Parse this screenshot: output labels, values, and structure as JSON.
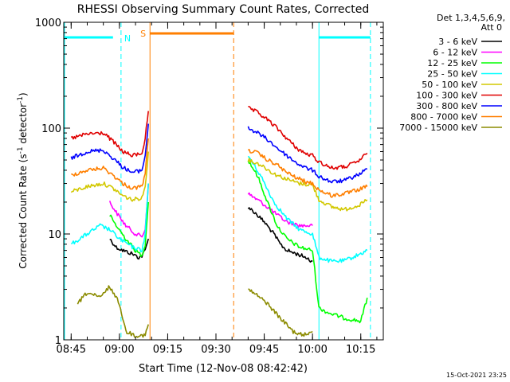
{
  "chart_data": {
    "type": "line",
    "title": "RHESSI Observing Summary Count Rates, Corrected",
    "xlabel": "Start Time (12-Nov-08 08:42:42)",
    "ylabel": "Corrected Count Rate (s",
    "ylabel_sup1": "-1",
    "ylabel_mid": " detector",
    "ylabel_sup2": "-1",
    "ylabel_end": ")",
    "yscale": "log",
    "ylim": [
      1,
      1000
    ],
    "xlim": [
      "08:42:42",
      "10:22:00"
    ],
    "ytick_labels": [
      "1",
      "10",
      "100",
      "1000"
    ],
    "xtick_labels": [
      "08:45",
      "09:00",
      "09:15",
      "09:30",
      "09:45",
      "10:00",
      "10:15"
    ],
    "legend": {
      "position": "right",
      "header": [
        "Det 1,3,4,5,6,9,",
        "Att 0"
      ],
      "entries": [
        {
          "label": "3 - 6 keV",
          "color": "#000000"
        },
        {
          "label": "6 - 12 keV",
          "color": "#ff00ff"
        },
        {
          "label": "12 - 25 keV",
          "color": "#00ff00"
        },
        {
          "label": "25 - 50 keV",
          "color": "#00ffff"
        },
        {
          "label": "50 - 100 keV",
          "color": "#d2c800"
        },
        {
          "label": "100 - 300 keV",
          "color": "#e00000"
        },
        {
          "label": "300 - 800 keV",
          "color": "#0000ff"
        },
        {
          "label": "800 - 7000 keV",
          "color": "#ff7f00"
        },
        {
          "label": "7000 - 15000 keV",
          "color": "#8b8b00"
        }
      ]
    },
    "annotations": [
      {
        "label": "N",
        "color": "#00ffff"
      },
      {
        "label": "S",
        "color": "#ff7f00"
      }
    ],
    "series": [
      {
        "id": "s_3_6",
        "color": "#000000",
        "x": [
          "08:57",
          "08:59",
          "09:01",
          "09:04",
          "09:06",
          "09:07",
          "09:08",
          "09:09",
          "09:40",
          "09:42",
          "09:45",
          "09:48",
          "09:50",
          "09:52",
          "09:55",
          "09:58",
          "10:00"
        ],
        "y": [
          9,
          7.5,
          7,
          6.5,
          6,
          6.2,
          7,
          9,
          18,
          16,
          13,
          10,
          8,
          7,
          6.5,
          6,
          5.5
        ]
      },
      {
        "id": "s_6_12",
        "color": "#ff00ff",
        "x": [
          "08:57",
          "08:59",
          "09:02",
          "09:05",
          "09:07",
          "09:08",
          "09:09",
          "09:40",
          "09:44",
          "09:48",
          "09:52",
          "09:56",
          "10:00"
        ],
        "y": [
          20,
          16,
          12,
          10,
          9.5,
          11,
          30,
          24,
          20,
          16,
          13,
          12,
          12
        ]
      },
      {
        "id": "s_12_25",
        "color": "#00ff00",
        "x": [
          "08:57",
          "08:59",
          "09:02",
          "09:05",
          "09:07",
          "09:08",
          "09:09",
          "09:40",
          "09:43",
          "09:46",
          "09:49",
          "09:52",
          "09:56",
          "10:00",
          "10:02",
          "10:05",
          "10:10",
          "10:15",
          "10:17"
        ],
        "y": [
          15,
          12,
          9,
          7,
          6.2,
          8,
          20,
          50,
          35,
          20,
          12,
          9,
          7.5,
          7,
          2,
          1.8,
          1.6,
          1.5,
          2.5
        ]
      },
      {
        "id": "s_25_50",
        "color": "#00ffff",
        "x": [
          "08:45",
          "08:50",
          "08:54",
          "08:57",
          "09:00",
          "09:04",
          "09:07",
          "09:08",
          "09:09",
          "09:40",
          "09:44",
          "09:48",
          "09:52",
          "09:56",
          "10:00",
          "10:02",
          "10:06",
          "10:10",
          "10:15",
          "10:17"
        ],
        "y": [
          8,
          10,
          12,
          11,
          9,
          7.5,
          7,
          10,
          30,
          55,
          35,
          20,
          14,
          11,
          10,
          6,
          5.5,
          5.6,
          6.5,
          7
        ]
      },
      {
        "id": "s_50_100",
        "color": "#d2c800",
        "x": [
          "08:45",
          "08:50",
          "08:55",
          "08:58",
          "09:01",
          "09:04",
          "09:07",
          "09:08",
          "09:09",
          "09:40",
          "09:44",
          "09:48",
          "09:52",
          "09:56",
          "10:00",
          "10:02",
          "10:06",
          "10:10",
          "10:15",
          "10:17"
        ],
        "y": [
          25,
          28,
          30,
          27,
          23,
          21,
          22,
          28,
          60,
          50,
          45,
          37,
          33,
          30,
          29,
          21,
          18,
          17,
          19,
          21
        ]
      },
      {
        "id": "s_100_300",
        "color": "#e00000",
        "x": [
          "08:45",
          "08:50",
          "08:55",
          "08:58",
          "09:01",
          "09:04",
          "09:07",
          "09:08",
          "09:09",
          "09:40",
          "09:43",
          "09:46",
          "09:49",
          "09:52",
          "09:55",
          "09:58",
          "10:00",
          "10:02",
          "10:06",
          "10:10",
          "10:14",
          "10:17"
        ],
        "y": [
          80,
          88,
          90,
          75,
          60,
          55,
          58,
          80,
          145,
          155,
          140,
          120,
          100,
          80,
          65,
          57,
          55,
          48,
          42,
          43,
          48,
          58
        ]
      },
      {
        "id": "s_300_800",
        "color": "#0000ff",
        "x": [
          "08:45",
          "08:50",
          "08:55",
          "08:58",
          "09:01",
          "09:04",
          "09:07",
          "09:08",
          "09:09",
          "09:40",
          "09:43",
          "09:46",
          "09:49",
          "09:52",
          "09:55",
          "09:58",
          "10:00",
          "10:02",
          "10:06",
          "10:10",
          "10:14",
          "10:17"
        ],
        "y": [
          52,
          60,
          62,
          52,
          43,
          38,
          40,
          55,
          110,
          100,
          90,
          78,
          65,
          55,
          47,
          42,
          40,
          35,
          31,
          32,
          36,
          41
        ]
      },
      {
        "id": "s_800_7000",
        "color": "#ff7f00",
        "x": [
          "08:45",
          "08:50",
          "08:55",
          "08:58",
          "09:01",
          "09:04",
          "09:07",
          "09:08",
          "09:09",
          "09:40",
          "09:43",
          "09:46",
          "09:49",
          "09:52",
          "09:55",
          "09:58",
          "10:00",
          "10:02",
          "10:06",
          "10:10",
          "10:14",
          "10:17"
        ],
        "y": [
          36,
          40,
          42,
          36,
          30,
          27,
          28,
          38,
          80,
          62,
          58,
          50,
          45,
          38,
          34,
          31,
          30,
          26,
          23,
          24,
          26,
          28
        ]
      },
      {
        "id": "s_7000_15000",
        "color": "#8b8b00",
        "x": [
          "08:47",
          "08:50",
          "08:54",
          "08:57",
          "09:00",
          "09:02",
          "09:05",
          "09:08",
          "09:09",
          "09:40",
          "09:43",
          "09:46",
          "09:50",
          "09:54",
          "09:57",
          "10:00"
        ],
        "y": [
          2.2,
          2.8,
          2.5,
          3.2,
          2.2,
          1.2,
          1.1,
          1.1,
          1.4,
          3.0,
          2.6,
          2.2,
          1.6,
          1.2,
          1.1,
          1.2
        ]
      }
    ]
  },
  "footer": {
    "timestamp": "15-Oct-2021 23:25"
  }
}
